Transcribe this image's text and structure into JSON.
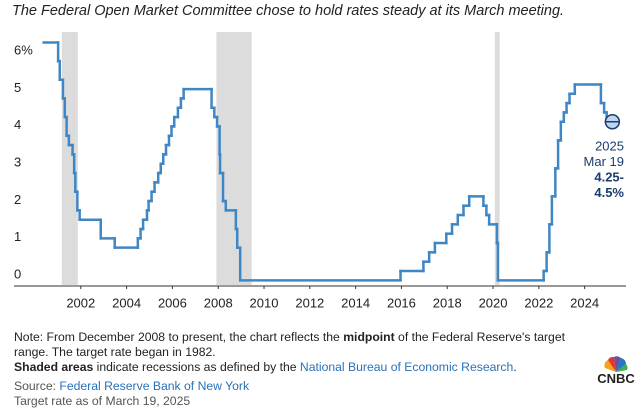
{
  "chart_data": {
    "type": "line",
    "step": true,
    "title": "The Federal Open Market Committee chose to hold rates steady at its March meeting.",
    "x": [
      2000.38,
      2001.01,
      2001.08,
      2001.22,
      2001.3,
      2001.38,
      2001.48,
      2001.64,
      2001.71,
      2001.76,
      2001.85,
      2001.95,
      2002.87,
      2003.48,
      2004.49,
      2004.61,
      2004.72,
      2004.89,
      2004.96,
      2005.09,
      2005.22,
      2005.38,
      2005.49,
      2005.6,
      2005.72,
      2005.85,
      2005.96,
      2006.08,
      2006.24,
      2006.37,
      2006.49,
      2007.71,
      2007.83,
      2007.95,
      2008.06,
      2008.08,
      2008.21,
      2008.33,
      2008.77,
      2008.83,
      2008.96,
      2015.96,
      2016.96,
      2017.21,
      2017.46,
      2017.96,
      2018.21,
      2018.46,
      2018.71,
      2018.96,
      2019.58,
      2019.71,
      2019.83,
      2020.17,
      2020.21,
      2022.21,
      2022.34,
      2022.46,
      2022.57,
      2022.72,
      2022.84,
      2022.96,
      2023.09,
      2023.21,
      2023.34,
      2023.57,
      2024.71,
      2024.85,
      2024.96,
      2025.21
    ],
    "values": [
      6.5,
      6.0,
      5.5,
      5.0,
      4.5,
      4.0,
      3.75,
      3.5,
      3.0,
      2.5,
      2.0,
      1.75,
      1.25,
      1.0,
      1.25,
      1.5,
      1.75,
      2.0,
      2.25,
      2.5,
      2.75,
      3.0,
      3.25,
      3.5,
      3.75,
      4.0,
      4.25,
      4.5,
      4.75,
      5.0,
      5.25,
      4.75,
      4.5,
      4.25,
      3.5,
      3.0,
      2.25,
      2.0,
      1.5,
      1.0,
      0.125,
      0.375,
      0.625,
      0.875,
      1.125,
      1.375,
      1.625,
      1.875,
      2.125,
      2.375,
      2.125,
      1.875,
      1.625,
      1.125,
      0.125,
      0.375,
      0.875,
      1.625,
      2.375,
      3.125,
      3.875,
      4.375,
      4.625,
      4.875,
      5.125,
      5.375,
      4.875,
      4.625,
      4.375,
      4.375
    ],
    "color": "#3f86c4",
    "shaded_ranges": [
      [
        2001.17,
        2001.87
      ],
      [
        2007.92,
        2009.46
      ],
      [
        2020.08,
        2020.29
      ]
    ],
    "shade_color": "#dcdcdc",
    "xlim": [
      2000,
      2025.5
    ],
    "xticks": [
      2002,
      2004,
      2006,
      2008,
      2010,
      2012,
      2014,
      2016,
      2018,
      2020,
      2022,
      2024
    ],
    "ylim": [
      0,
      6.7
    ],
    "yticks": [
      0,
      1,
      2,
      3,
      4,
      5,
      {
        "value": 6,
        "label": "6%"
      }
    ],
    "annotation": [
      "2025",
      "Mar 19",
      "4.25-",
      "4.5%"
    ]
  },
  "footer": {
    "note": [
      "Note: From December 2008 to present, the chart reflects the ",
      "midpoint",
      " of the Federal Reserve's target",
      "range. The target rate began in 1982."
    ],
    "shading": [
      "Shaded areas",
      " indicate recessions as defined by the ",
      "National Bureau of Economic Research",
      "."
    ],
    "source": [
      "Source: ",
      "Federal Reserve Bank of New York"
    ],
    "date": "Target rate as of March 19, 2025",
    "logo": "CNBC"
  }
}
